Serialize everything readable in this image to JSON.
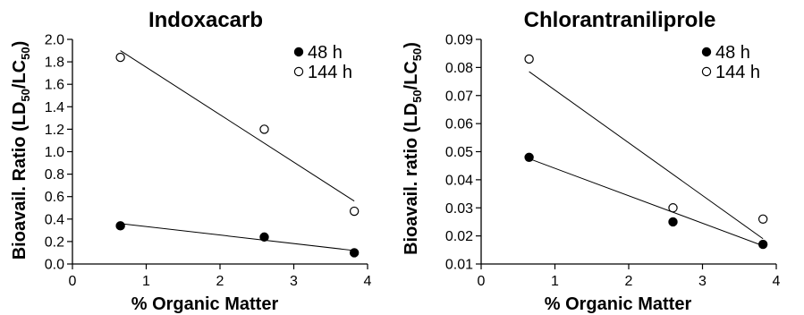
{
  "chart_data": [
    {
      "type": "scatter",
      "title": "Indoxacarb",
      "xlabel": "% Organic Matter",
      "ylabel_parts": [
        "Bioavail. Ratio (LD",
        "50",
        "/LC",
        "50",
        ")"
      ],
      "xlim": [
        0,
        4
      ],
      "ylim": [
        0.0,
        2.0
      ],
      "x_ticks": [
        "0",
        "1",
        "2",
        "3",
        "4"
      ],
      "y_ticks": [
        "0.0",
        "0.2",
        "0.4",
        "0.6",
        "0.8",
        "1.0",
        "1.2",
        "1.4",
        "1.6",
        "1.8",
        "2.0"
      ],
      "legend_position": "top-right",
      "series": [
        {
          "name": "48 h",
          "marker": "filled-circle",
          "x": [
            0.65,
            2.6,
            3.82
          ],
          "y": [
            0.34,
            0.24,
            0.1
          ],
          "trendline": {
            "x": [
              0.65,
              3.82
            ],
            "y": [
              0.36,
              0.12
            ]
          }
        },
        {
          "name": "144 h",
          "marker": "open-circle",
          "x": [
            0.65,
            2.6,
            3.82
          ],
          "y": [
            1.84,
            1.2,
            0.47
          ],
          "trendline": {
            "x": [
              0.65,
              3.82
            ],
            "y": [
              1.9,
              0.56
            ]
          }
        }
      ]
    },
    {
      "type": "scatter",
      "title": "Chlorantraniliprole",
      "xlabel": "% Organic Matter",
      "ylabel_parts": [
        "Bioavail. ratio (LD",
        "50",
        "/LC",
        "50",
        ")"
      ],
      "xlim": [
        0,
        4
      ],
      "ylim": [
        0.01,
        0.09
      ],
      "x_ticks": [
        "0",
        "1",
        "2",
        "3",
        "4"
      ],
      "y_ticks": [
        "0.01",
        "0.02",
        "0.03",
        "0.04",
        "0.05",
        "0.06",
        "0.07",
        "0.08",
        "0.09"
      ],
      "legend_position": "top-right",
      "series": [
        {
          "name": "48 h",
          "marker": "filled-circle",
          "x": [
            0.65,
            2.6,
            3.82
          ],
          "y": [
            0.048,
            0.025,
            0.017
          ],
          "trendline": {
            "x": [
              0.65,
              3.82
            ],
            "y": [
              0.0475,
              0.0165
            ]
          }
        },
        {
          "name": "144 h",
          "marker": "open-circle",
          "x": [
            0.65,
            2.6,
            3.82
          ],
          "y": [
            0.083,
            0.03,
            0.026
          ],
          "trendline": {
            "x": [
              0.65,
              3.82
            ],
            "y": [
              0.0785,
              0.019
            ]
          }
        }
      ]
    }
  ]
}
